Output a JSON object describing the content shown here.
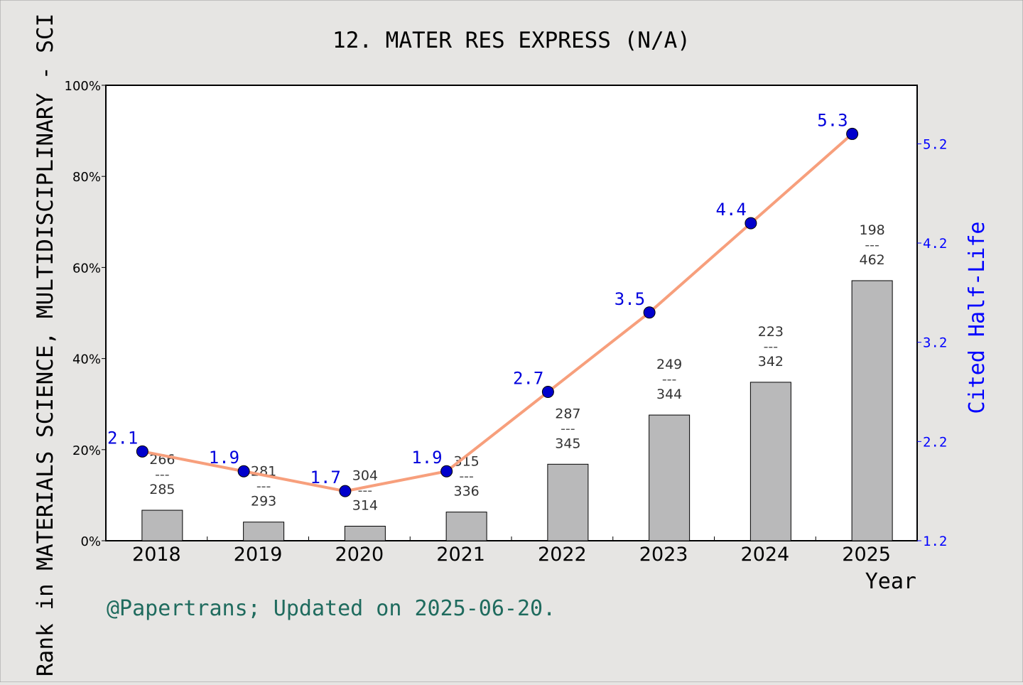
{
  "chart_data": {
    "type": "bar+line",
    "title": "12. MATER RES EXPRESS (N/A)",
    "xlabel": "Year",
    "ylabel_left": "Rank in MATERIALS SCIENCE, MULTIDISCIPLINARY - SCI",
    "ylabel_right": "Cited Half-Life",
    "categories": [
      "2018",
      "2019",
      "2020",
      "2021",
      "2022",
      "2023",
      "2024",
      "2025"
    ],
    "left_axis": {
      "ticks": [
        "0%",
        "20%",
        "40%",
        "60%",
        "80%",
        "100%"
      ],
      "ylim": [
        0,
        100
      ]
    },
    "right_axis": {
      "ticks": [
        "1.2",
        "2.2",
        "3.2",
        "4.2",
        "5.2"
      ],
      "tick_values": [
        1.2,
        2.2,
        3.2,
        4.2,
        5.2
      ],
      "ylim": [
        1.2,
        5.79
      ]
    },
    "bars": {
      "rank": [
        266,
        281,
        304,
        315,
        287,
        249,
        223,
        198
      ],
      "total": [
        285,
        293,
        314,
        336,
        345,
        344,
        342,
        462
      ],
      "values_percent": [
        6.7,
        4.1,
        3.2,
        6.3,
        16.8,
        27.6,
        34.8,
        57.1
      ],
      "color": "#b9b9ba"
    },
    "line": {
      "name": "Cited Half-Life",
      "values": [
        2.1,
        1.9,
        1.7,
        1.9,
        2.7,
        3.5,
        4.4,
        5.3
      ],
      "line_color": "#f79f7c",
      "marker_color": "#0000cc"
    },
    "grid": false,
    "footer": "@Papertrans; Updated on 2025-06-20."
  }
}
